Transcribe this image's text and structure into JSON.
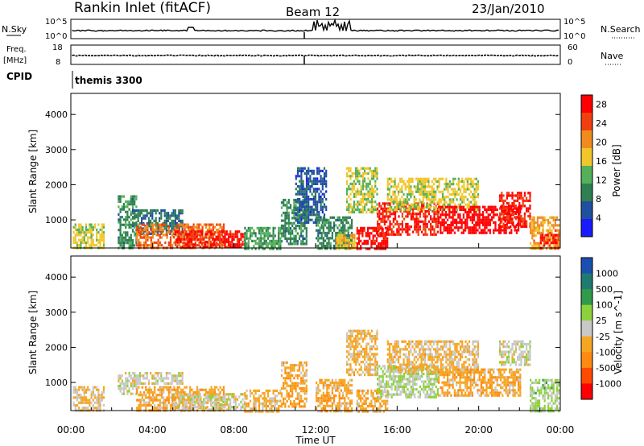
{
  "header": {
    "site": "Rankin Inlet (fitACF)",
    "beam": "Beam 12",
    "date": "23/Jan/2010"
  },
  "status_panels": {
    "nsky_label": "N.Sky",
    "nsky_ticks": [
      "10^5",
      "10^0"
    ],
    "nsearch_label": "N.Search",
    "nsearch_ticks": [
      "10^5",
      "10^0"
    ],
    "freq_label": "Freq.",
    "freq_unit": "[MHz]",
    "freq_ticks": [
      "18",
      "8"
    ],
    "nave_label": "Nave",
    "nave_ticks": [
      "60",
      "0"
    ],
    "cpid_label": "CPID",
    "cpid_value": "themis 3300"
  },
  "colors": {
    "power_scale": [
      "#1a1aff",
      "#1f4f9f",
      "#2e7f52",
      "#55b05a",
      "#f0c62a",
      "#f08c1e",
      "#f04010",
      "#ff0000"
    ],
    "velocity_scale": [
      "#ff0000",
      "#ff4a00",
      "#ff8a10",
      "#f5a623",
      "#c8c8c8",
      "#8cd23c",
      "#2f9a4a",
      "#1f7a72",
      "#1a4fb0"
    ]
  },
  "chart_data": [
    {
      "type": "heatmap",
      "name": "power",
      "ylabel": "Slant Range [km]",
      "xlabel": "Time UT",
      "x_ticks": [
        "00:00",
        "04:00",
        "08:00",
        "12:00",
        "16:00",
        "20:00",
        "00:00"
      ],
      "xlim_hours": [
        0,
        24
      ],
      "y_ticks": [
        1000,
        2000,
        3000,
        4000
      ],
      "ylim": [
        200,
        4600
      ],
      "colorbar": {
        "label": "Power [dB]",
        "ticks": [
          "4",
          "8",
          "12",
          "16",
          "20",
          "24",
          "28"
        ],
        "range": [
          0,
          30
        ]
      },
      "regions": [
        {
          "t0": 0.1,
          "t1": 1.6,
          "r0": 200,
          "r1": 900,
          "level": 16
        },
        {
          "t0": 2.3,
          "t1": 3.2,
          "r0": 200,
          "r1": 1700,
          "level": 10
        },
        {
          "t0": 3.0,
          "t1": 5.5,
          "r0": 600,
          "r1": 1300,
          "level": 8
        },
        {
          "t0": 3.2,
          "t1": 7.5,
          "r0": 200,
          "r1": 900,
          "level": 22
        },
        {
          "t0": 5.0,
          "t1": 8.5,
          "r0": 200,
          "r1": 700,
          "level": 27
        },
        {
          "t0": 8.5,
          "t1": 10.3,
          "r0": 200,
          "r1": 800,
          "level": 12
        },
        {
          "t0": 10.3,
          "t1": 11.6,
          "r0": 300,
          "r1": 1600,
          "level": 10
        },
        {
          "t0": 11.0,
          "t1": 12.5,
          "r0": 900,
          "r1": 2500,
          "level": 6
        },
        {
          "t0": 12.0,
          "t1": 13.8,
          "r0": 200,
          "r1": 1100,
          "level": 10
        },
        {
          "t0": 13.0,
          "t1": 14.0,
          "r0": 200,
          "r1": 600,
          "level": 18
        },
        {
          "t0": 13.5,
          "t1": 15.0,
          "r0": 1200,
          "r1": 2500,
          "level": 15
        },
        {
          "t0": 14.0,
          "t1": 15.5,
          "r0": 200,
          "r1": 800,
          "level": 28
        },
        {
          "t0": 15.0,
          "t1": 18.0,
          "r0": 600,
          "r1": 1500,
          "level": 26
        },
        {
          "t0": 15.5,
          "t1": 20.0,
          "r0": 1300,
          "r1": 2200,
          "level": 16
        },
        {
          "t0": 18.0,
          "t1": 22.0,
          "r0": 600,
          "r1": 1400,
          "level": 29
        },
        {
          "t0": 21.0,
          "t1": 22.5,
          "r0": 800,
          "r1": 1800,
          "level": 27
        },
        {
          "t0": 22.5,
          "t1": 23.9,
          "r0": 200,
          "r1": 1100,
          "level": 20
        },
        {
          "t0": 23.0,
          "t1": 23.9,
          "r0": 200,
          "r1": 600,
          "level": 26
        }
      ]
    },
    {
      "type": "heatmap",
      "name": "velocity",
      "ylabel": "Slant Range [km]",
      "xlabel": "Time UT",
      "x_ticks": [
        "00:00",
        "04:00",
        "08:00",
        "12:00",
        "16:00",
        "20:00",
        "00:00"
      ],
      "xlim_hours": [
        0,
        24
      ],
      "y_ticks": [
        1000,
        2000,
        3000,
        4000
      ],
      "ylim": [
        200,
        4600
      ],
      "colorbar": {
        "label": "Velocity [m s^-1]",
        "ticks": [
          "1000",
          "500",
          "100",
          "25",
          "-25",
          "-100",
          "-500",
          "-1000"
        ],
        "range": [
          -1200,
          1200
        ]
      },
      "regions": [
        {
          "t0": 0.1,
          "t1": 1.6,
          "r0": 200,
          "r1": 900,
          "level": -150
        },
        {
          "t0": 2.3,
          "t1": 3.2,
          "r0": 700,
          "r1": 1300,
          "level": 0
        },
        {
          "t0": 3.0,
          "t1": 5.5,
          "r0": 1000,
          "r1": 1300,
          "level": 0
        },
        {
          "t0": 3.2,
          "t1": 7.5,
          "r0": 200,
          "r1": 900,
          "level": -300
        },
        {
          "t0": 5.0,
          "t1": 8.5,
          "r0": 200,
          "r1": 700,
          "level": 0
        },
        {
          "t0": 8.5,
          "t1": 10.3,
          "r0": 200,
          "r1": 800,
          "level": -200
        },
        {
          "t0": 10.3,
          "t1": 11.6,
          "r0": 300,
          "r1": 1600,
          "level": -300
        },
        {
          "t0": 12.0,
          "t1": 13.8,
          "r0": 200,
          "r1": 1100,
          "level": -300
        },
        {
          "t0": 13.5,
          "t1": 15.0,
          "r0": 1200,
          "r1": 2500,
          "level": -200
        },
        {
          "t0": 14.0,
          "t1": 15.5,
          "r0": 200,
          "r1": 800,
          "level": -300
        },
        {
          "t0": 15.0,
          "t1": 18.0,
          "r0": 600,
          "r1": 1500,
          "level": 150
        },
        {
          "t0": 15.5,
          "t1": 20.0,
          "r0": 1300,
          "r1": 2200,
          "level": -200
        },
        {
          "t0": 18.0,
          "t1": 22.0,
          "r0": 600,
          "r1": 1400,
          "level": -300
        },
        {
          "t0": 21.0,
          "t1": 22.5,
          "r0": 1500,
          "r1": 2200,
          "level": 0
        },
        {
          "t0": 22.5,
          "t1": 23.9,
          "r0": 200,
          "r1": 1100,
          "level": 200
        }
      ]
    }
  ]
}
